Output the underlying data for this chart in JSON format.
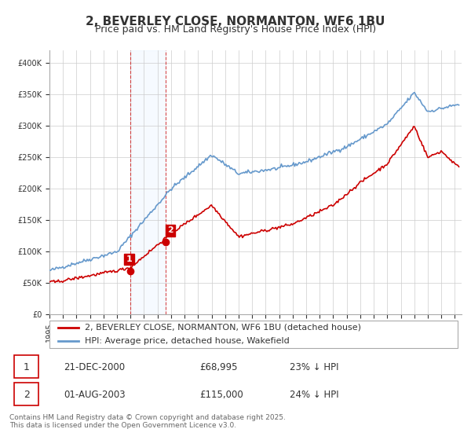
{
  "title": "2, BEVERLEY CLOSE, NORMANTON, WF6 1BU",
  "subtitle": "Price paid vs. HM Land Registry's House Price Index (HPI)",
  "ylabel_ticks": [
    "£0",
    "£50K",
    "£100K",
    "£150K",
    "£200K",
    "£250K",
    "£300K",
    "£350K",
    "£400K"
  ],
  "ylim": [
    0,
    420000
  ],
  "xlim_start": 1995.0,
  "xlim_end": 2025.5,
  "sale1_date": 2000.97,
  "sale1_price": 68995,
  "sale1_label": "1",
  "sale2_date": 2003.58,
  "sale2_price": 115000,
  "sale2_label": "2",
  "red_line_color": "#cc0000",
  "blue_line_color": "#6699cc",
  "shade_color": "#ddeeff",
  "vline_color": "#cc0000",
  "legend1": "2, BEVERLEY CLOSE, NORMANTON, WF6 1BU (detached house)",
  "legend2": "HPI: Average price, detached house, Wakefield",
  "table_rows": [
    {
      "num": "1",
      "date": "21-DEC-2000",
      "price": "£68,995",
      "hpi": "23% ↓ HPI"
    },
    {
      "num": "2",
      "date": "01-AUG-2003",
      "price": "£115,000",
      "hpi": "24% ↓ HPI"
    }
  ],
  "footer": "Contains HM Land Registry data © Crown copyright and database right 2025.\nThis data is licensed under the Open Government Licence v3.0.",
  "background_color": "#ffffff"
}
